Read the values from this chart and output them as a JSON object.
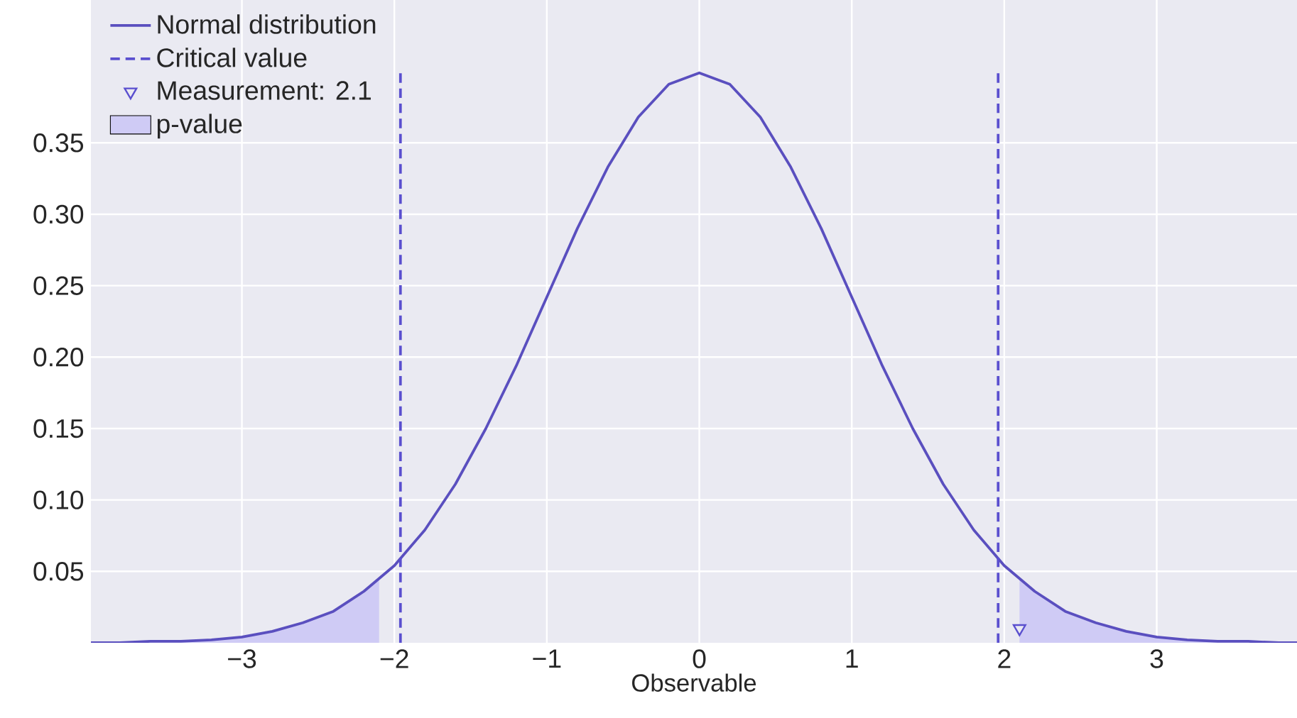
{
  "chart_data": {
    "type": "line",
    "xlabel": "Observable",
    "xlim": [
      -3.99,
      3.92
    ],
    "ylim": [
      0,
      0.45
    ],
    "xticks": [
      {
        "value": -3,
        "label": "−3"
      },
      {
        "value": -2,
        "label": "−2"
      },
      {
        "value": -1,
        "label": "−1"
      },
      0,
      1,
      2,
      3
    ],
    "yticks": [
      {
        "value": 0.05,
        "label": "0.05"
      },
      {
        "value": 0.1,
        "label": "0.10"
      },
      {
        "value": 0.15,
        "label": "0.15"
      },
      {
        "value": 0.2,
        "label": "0.20"
      },
      {
        "value": 0.25,
        "label": "0.25"
      },
      {
        "value": 0.3,
        "label": "0.30"
      },
      {
        "value": 0.35,
        "label": "0.35"
      }
    ],
    "grid": true,
    "legend": "top left",
    "series": [
      {
        "name": "Normal distribution",
        "color": "#5a4fbf",
        "x": [
          -3.99,
          -3.8,
          -3.6,
          -3.4,
          -3.2,
          -3.0,
          -2.8,
          -2.6,
          -2.4,
          -2.2,
          -2.0,
          -1.8,
          -1.6,
          -1.4,
          -1.2,
          -1.0,
          -0.8,
          -0.6,
          -0.4,
          -0.2,
          0,
          0.2,
          0.4,
          0.6,
          0.8,
          1.0,
          1.2,
          1.4,
          1.6,
          1.8,
          2.0,
          2.2,
          2.4,
          2.6,
          2.8,
          3.0,
          3.2,
          3.4,
          3.6,
          3.8,
          3.92
        ],
        "values": [
          0.0,
          0.0,
          0.001,
          0.001,
          0.002,
          0.004,
          0.008,
          0.014,
          0.022,
          0.036,
          0.054,
          0.079,
          0.111,
          0.15,
          0.194,
          0.242,
          0.29,
          0.333,
          0.368,
          0.391,
          0.399,
          0.391,
          0.368,
          0.333,
          0.29,
          0.242,
          0.194,
          0.15,
          0.111,
          0.079,
          0.054,
          0.036,
          0.022,
          0.014,
          0.008,
          0.004,
          0.002,
          0.001,
          0.001,
          0.0,
          0.0
        ]
      },
      {
        "name": "Critical value",
        "color": "#5a4fcf",
        "line_style": "dashed",
        "x": [
          -1.96,
          -1.96,
          0,
          1.96,
          1.96
        ],
        "values": [
          0,
          0.4,
          null,
          0,
          0.4
        ]
      },
      {
        "name": "Measurement: 2.1",
        "type": "scatter",
        "marker": "triangle",
        "color": "#5a4fcf",
        "x": [
          2.1
        ],
        "values": [
          0.01
        ]
      },
      {
        "name": "p-value",
        "type": "area",
        "color": "#cfcbf5",
        "x": [
          -3.99,
          -3.8,
          -3.6,
          -3.4,
          -3.2,
          -3.0,
          -2.8,
          -2.6,
          -2.4,
          -2.2,
          -2.1,
          0,
          2.1,
          2.2,
          2.4,
          2.6,
          2.8,
          3.0,
          3.2,
          3.4,
          3.6,
          3.8,
          3.92
        ],
        "values": [
          0.0,
          0.0,
          0.001,
          0.001,
          0.002,
          0.004,
          0.008,
          0.014,
          0.022,
          0.036,
          0.044,
          null,
          0.044,
          0.036,
          0.022,
          0.014,
          0.008,
          0.004,
          0.002,
          0.001,
          0.001,
          0.0,
          0.0
        ]
      }
    ]
  }
}
